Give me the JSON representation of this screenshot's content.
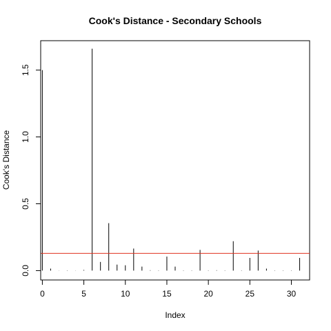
{
  "chart_data": {
    "type": "bar",
    "title": "Cook's Distance - Secondary Schools",
    "xlabel": "Index",
    "ylabel": "Cook's Distance",
    "x_ticks": [
      "0",
      "5",
      "10",
      "15",
      "20",
      "25",
      "30"
    ],
    "y_ticks": [
      "0.0",
      "0.5",
      "1.0",
      "1.5"
    ],
    "xlim": [
      -0.2,
      32.2
    ],
    "ylim": [
      -0.07,
      1.72
    ],
    "grid": false,
    "legend": "none",
    "series": [
      {
        "x": [
          0,
          1,
          2,
          3,
          4,
          5,
          6,
          7,
          8,
          9,
          10,
          11,
          12,
          13,
          14,
          15,
          16,
          17,
          18,
          19,
          20,
          21,
          22,
          23,
          24,
          25,
          26,
          27,
          28,
          29,
          30,
          31
        ],
        "values": [
          1.5,
          0.015,
          0.001,
          0.002,
          0.001,
          0.005,
          1.66,
          0.065,
          0.355,
          0.045,
          0.04,
          0.165,
          0.03,
          0.003,
          0.002,
          0.105,
          0.03,
          0.002,
          0.002,
          0.155,
          0.002,
          0.003,
          0.002,
          0.22,
          0.002,
          0.095,
          0.15,
          0.015,
          0.002,
          0.002,
          0.002,
          0.095
        ],
        "color": "#000000"
      }
    ],
    "reference_line": {
      "y": 0.129,
      "color": "#e0301e"
    }
  }
}
